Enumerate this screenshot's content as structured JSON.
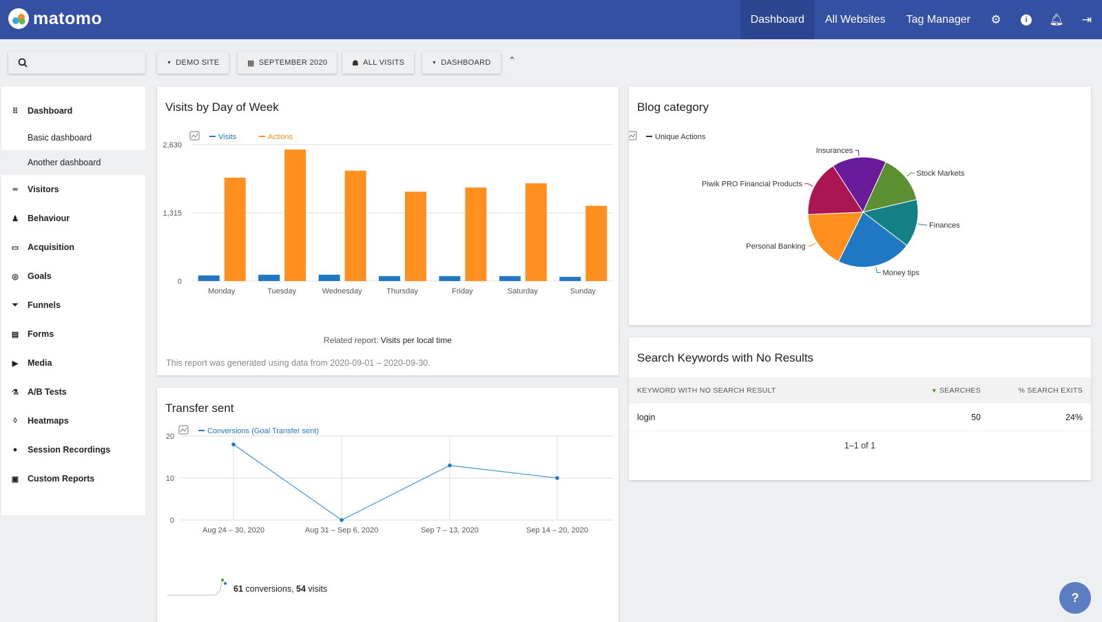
{
  "header": {
    "brand": "matomo",
    "nav": [
      "Dashboard",
      "All Websites",
      "Tag Manager"
    ],
    "icons": [
      "gear-icon",
      "info-icon",
      "bell-icon",
      "logout-icon"
    ],
    "color": "#3450a3"
  },
  "toolbar": {
    "search_placeholder": "",
    "site": "DEMO SITE",
    "period": "SEPTEMBER 2020",
    "segment": "ALL VISITS",
    "dashboard": "DASHBOARD"
  },
  "sidebar": {
    "items": [
      {
        "label": "Dashboard",
        "icon": "grid-icon",
        "sub": [
          "Basic dashboard",
          "Another dashboard"
        ]
      },
      {
        "label": "Visitors",
        "icon": "binoculars-icon"
      },
      {
        "label": "Behaviour",
        "icon": "bell-icon"
      },
      {
        "label": "Acquisition",
        "icon": "window-icon"
      },
      {
        "label": "Goals",
        "icon": "target-icon"
      },
      {
        "label": "Funnels",
        "icon": "funnel-icon"
      },
      {
        "label": "Forms",
        "icon": "form-icon"
      },
      {
        "label": "Media",
        "icon": "media-icon"
      },
      {
        "label": "A/B Tests",
        "icon": "flask-icon"
      },
      {
        "label": "Heatmaps",
        "icon": "drop-icon"
      },
      {
        "label": "Session Recordings",
        "icon": "play-icon"
      },
      {
        "label": "Custom Reports",
        "icon": "report-icon"
      }
    ]
  },
  "visits_widget": {
    "title": "Visits by Day of Week",
    "related_label": "Related report:",
    "related_link": "Visits per local time",
    "footer": "This report was generated using data from 2020-09-01 – 2020-09-30."
  },
  "transfer_widget": {
    "title": "Transfer sent",
    "spark_conversions": "61",
    "spark_conv_label": " conversions, ",
    "spark_visits": "54",
    "spark_visits_label": " visits"
  },
  "blog_widget": {
    "title": "Blog category"
  },
  "search_widget": {
    "title": "Search Keywords with No Results",
    "columns": [
      "KEYWORD WITH NO SEARCH RESULT",
      "SEARCHES",
      "% SEARCH EXITS"
    ],
    "rows": [
      {
        "keyword": "login",
        "searches": "50",
        "exits": "24%"
      }
    ],
    "pagination": "1–1 of 1"
  },
  "chart_data": [
    {
      "type": "bar",
      "categories": [
        "Monday",
        "Tuesday",
        "Wednesday",
        "Thursday",
        "Friday",
        "Saturday",
        "Sunday"
      ],
      "series": [
        {
          "name": "Visits",
          "color": "#1f78c1",
          "values": [
            108,
            122,
            122,
            95,
            95,
            95,
            81
          ]
        },
        {
          "name": "Actions",
          "color": "#ff8f1f",
          "values": [
            1993,
            2535,
            2128,
            1722,
            1803,
            1884,
            1451
          ]
        }
      ],
      "yticks": [
        "0",
        "1,315",
        "2,630"
      ],
      "ylim": [
        0,
        2630
      ],
      "grid": true,
      "legend": "top-left"
    },
    {
      "type": "line",
      "categories": [
        "Aug 24 – 30, 2020",
        "Aug 31 – Sep 6, 2020",
        "Sep 7 – 13, 2020",
        "Sep 14 – 20, 2020"
      ],
      "series": [
        {
          "name": "Conversions (Goal Transfer sent)",
          "color": "#1f78c1",
          "values": [
            18,
            0,
            13,
            10
          ]
        }
      ],
      "yticks": [
        "0",
        "10",
        "20"
      ],
      "ylim": [
        0,
        20
      ],
      "grid": true,
      "legend": "top-left"
    },
    {
      "type": "pie",
      "series_name": "Unique Actions",
      "labels": [
        "Insurances",
        "Stock Markets",
        "Finances",
        "Money tips",
        "Personal Banking",
        "Piwik PRO Financial Products"
      ],
      "values": [
        16,
        14.5,
        14,
        22,
        17,
        16.5
      ],
      "colors": [
        "#6a1b9a",
        "#5b8f32",
        "#138086",
        "#1f78c1",
        "#ff8f1f",
        "#ab1652"
      ]
    }
  ]
}
